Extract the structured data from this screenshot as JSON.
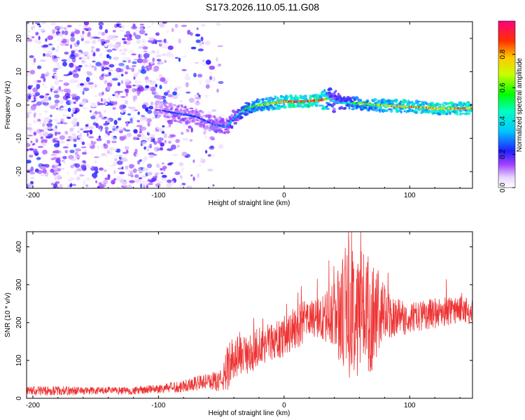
{
  "title": "S173.2026.110.05.11.G08",
  "colors": {
    "line": "#ee3333",
    "axis": "#000000"
  },
  "chart_data": [
    {
      "type": "heatmap",
      "xlabel": "Height of straight line (km)",
      "ylabel": "Frequency (Hz)",
      "xlim": [
        -205,
        150
      ],
      "ylim": [
        -25,
        25
      ],
      "x_ticks": [
        -200,
        -100,
        0,
        100
      ],
      "y_ticks": [
        -20,
        -10,
        0,
        10,
        20
      ],
      "colorbar": {
        "label": "Normalized spectral amplitude",
        "range": [
          0.0,
          1.0
        ],
        "ticks": [
          "0.0",
          "0.2",
          "0.4",
          "0.6",
          "0.8"
        ],
        "tick_values": [
          0.0,
          0.2,
          0.4,
          0.6,
          0.8
        ]
      },
      "noise_region_x": [
        -205,
        -50
      ],
      "ridge": {
        "x": [
          -100,
          -85,
          -70,
          -55,
          -45,
          -40,
          -30,
          -20,
          -10,
          0,
          10,
          20,
          30,
          35,
          40,
          50,
          60,
          80,
          100,
          120,
          150
        ],
        "freq_hz": [
          -1.5,
          -2.5,
          -3.5,
          -6,
          -6.5,
          -4,
          -1,
          0,
          0.5,
          1,
          1,
          1.2,
          1.5,
          2,
          1,
          0.5,
          0.5,
          -0.2,
          -0.5,
          -1,
          -1
        ],
        "amplitude": [
          0.2,
          0.3,
          0.25,
          0.3,
          0.35,
          0.4,
          0.6,
          0.7,
          0.8,
          0.9,
          1.0,
          1.0,
          1.0,
          0.6,
          0.4,
          0.5,
          0.7,
          0.8,
          0.9,
          0.9,
          0.9
        ]
      }
    },
    {
      "type": "line",
      "xlabel": "Height of straight line (km)",
      "ylabel": "SNR (10 * v/v)",
      "xlim": [
        -205,
        150
      ],
      "ylim": [
        0,
        440
      ],
      "x_ticks": [
        -200,
        -100,
        0,
        100
      ],
      "y_ticks": [
        0,
        100,
        200,
        300,
        400
      ],
      "series": [
        {
          "name": "SNR",
          "x": [
            -205,
            -180,
            -150,
            -120,
            -100,
            -85,
            -70,
            -60,
            -50,
            -45,
            -40,
            -35,
            -30,
            -25,
            -20,
            -10,
            0,
            10,
            20,
            30,
            40,
            50,
            60,
            70,
            80,
            90,
            100,
            110,
            120,
            130,
            140,
            150
          ],
          "values": [
            20,
            20,
            20,
            20,
            25,
            30,
            40,
            45,
            45,
            80,
            110,
            120,
            110,
            120,
            140,
            150,
            160,
            190,
            210,
            210,
            220,
            230,
            240,
            220,
            220,
            215,
            210,
            220,
            225,
            230,
            235,
            230
          ],
          "spread": [
            12,
            12,
            10,
            10,
            12,
            15,
            20,
            20,
            30,
            60,
            60,
            60,
            50,
            50,
            60,
            50,
            50,
            60,
            50,
            60,
            90,
            180,
            180,
            150,
            80,
            50,
            40,
            40,
            40,
            40,
            35,
            35
          ]
        }
      ]
    }
  ]
}
